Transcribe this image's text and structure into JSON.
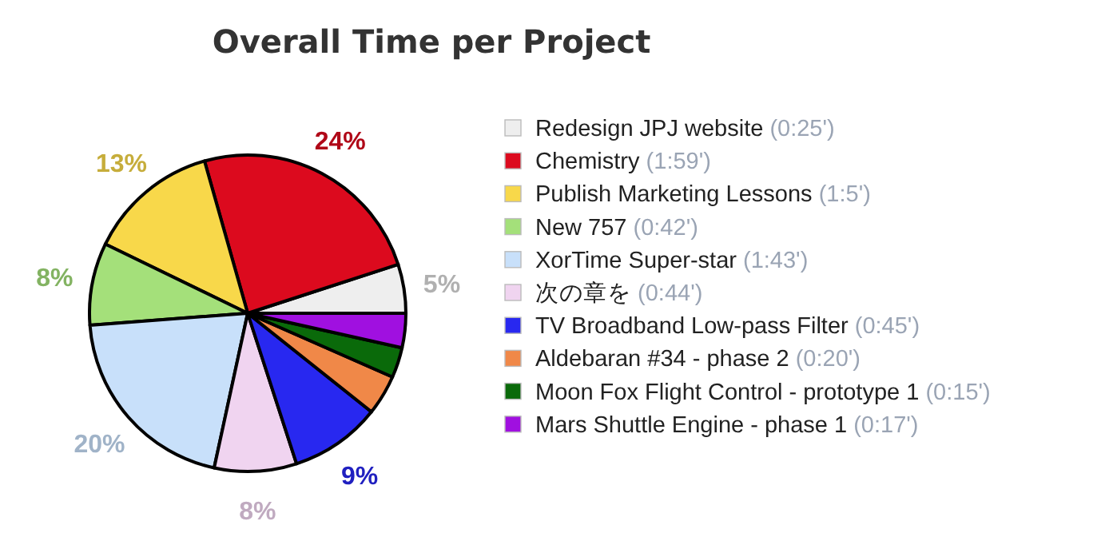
{
  "chart_data": {
    "type": "pie",
    "title": "Overall Time per Project",
    "categories": [
      "Redesign JPJ website (0:25')",
      "Chemistry (1:59')",
      "Publish Marketing Lessons (1:5')",
      "New 757 (0:42')",
      "XorTime Super-star (1:43')",
      "次の章を (0:44')",
      "TV Broadband Low-pass Filter (0:45')",
      "Aldebaran #34 - phase 2 (0:20')",
      "Moon Fox Flight Control - prototype 1 (0:15')",
      "Mars Shuttle Engine - phase 1 (0:17')"
    ],
    "values": [
      5,
      24.4,
      13.4,
      8.4,
      20.4,
      8.4,
      9.3,
      4.1,
      3.1,
      3.5
    ],
    "colors": [
      "#eeeeee",
      "#dc0a1e",
      "#f8d84a",
      "#a4e07a",
      "#c8e0fa",
      "#f0d4f0",
      "#2828f0",
      "#f08848",
      "#0a6a0a",
      "#a010e0"
    ],
    "value_labels": [
      "5%",
      "24%",
      "13%",
      "8%",
      "20%",
      "8%",
      "9%",
      null,
      null,
      null
    ],
    "legend": "right"
  }
}
